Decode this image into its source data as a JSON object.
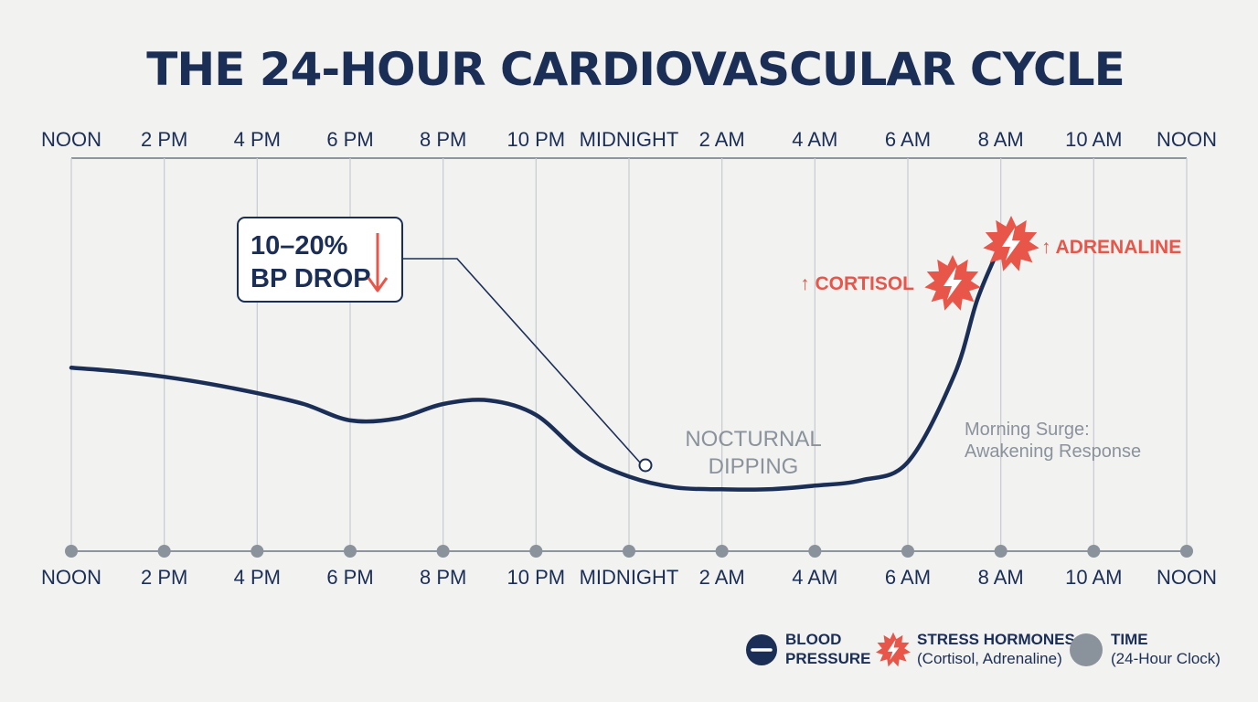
{
  "title": "THE 24-HOUR CARDIOVASCULAR CYCLE",
  "colors": {
    "blood_pressure": "#1b2e56",
    "stress_hormones": "#e8564a",
    "time": "#8a929c",
    "background": "#f2f2f1"
  },
  "callout": {
    "line1": "10–20%",
    "line2": "BP DROP",
    "arrow_icon": "down-arrow-icon"
  },
  "annotations": {
    "nocturnal_line1": "NOCTURNAL",
    "nocturnal_line2": "DIPPING",
    "morning_line1": "Morning Surge:",
    "morning_line2": "Awakening Response",
    "cortisol": "↑ CORTISOL",
    "adrenaline": "↑ ADRENALINE"
  },
  "legend": {
    "bp_line1": "BLOOD",
    "bp_line2": "PRESSURE",
    "stress_line1": "STRESS HORMONES",
    "stress_line2": "(Cortisol, Adrenaline)",
    "time_line1": "TIME",
    "time_line2": "(24-Hour Clock)"
  },
  "chart_data": {
    "type": "line",
    "title": "THE 24-HOUR CARDIOVASCULAR CYCLE",
    "xlabel": "",
    "ylabel": "",
    "grid": true,
    "legend_position": "bottom-right",
    "x_unit": "hours after noon",
    "xlim": [
      0,
      24
    ],
    "ylim": [
      0,
      100
    ],
    "categories": [
      "NOON",
      "2 PM",
      "4 PM",
      "6 PM",
      "8 PM",
      "10 PM",
      "MIDNIGHT",
      "2 AM",
      "4 AM",
      "6 AM",
      "8 AM",
      "10 AM",
      "NOON"
    ],
    "category_hours": [
      0,
      2,
      4,
      6,
      8,
      10,
      12,
      14,
      16,
      18,
      20,
      22,
      24
    ],
    "series": [
      {
        "name": "BLOOD PRESSURE",
        "x": [
          0,
          1,
          2,
          3,
          4,
          5,
          6,
          7,
          8,
          9,
          10,
          11,
          12,
          13,
          14,
          15,
          16,
          17,
          18,
          19,
          19.5,
          20
        ],
        "y": [
          44,
          43,
          41.5,
          39.5,
          37,
          34,
          29.5,
          30,
          34,
          35,
          31,
          20,
          14,
          11,
          10.5,
          10.5,
          11.5,
          13,
          18,
          42,
          63,
          78
        ]
      }
    ],
    "events": [
      {
        "name": "↑ CORTISOL",
        "x": 19.3
      },
      {
        "name": "↑ ADRENALINE",
        "x": 20.2
      }
    ]
  }
}
